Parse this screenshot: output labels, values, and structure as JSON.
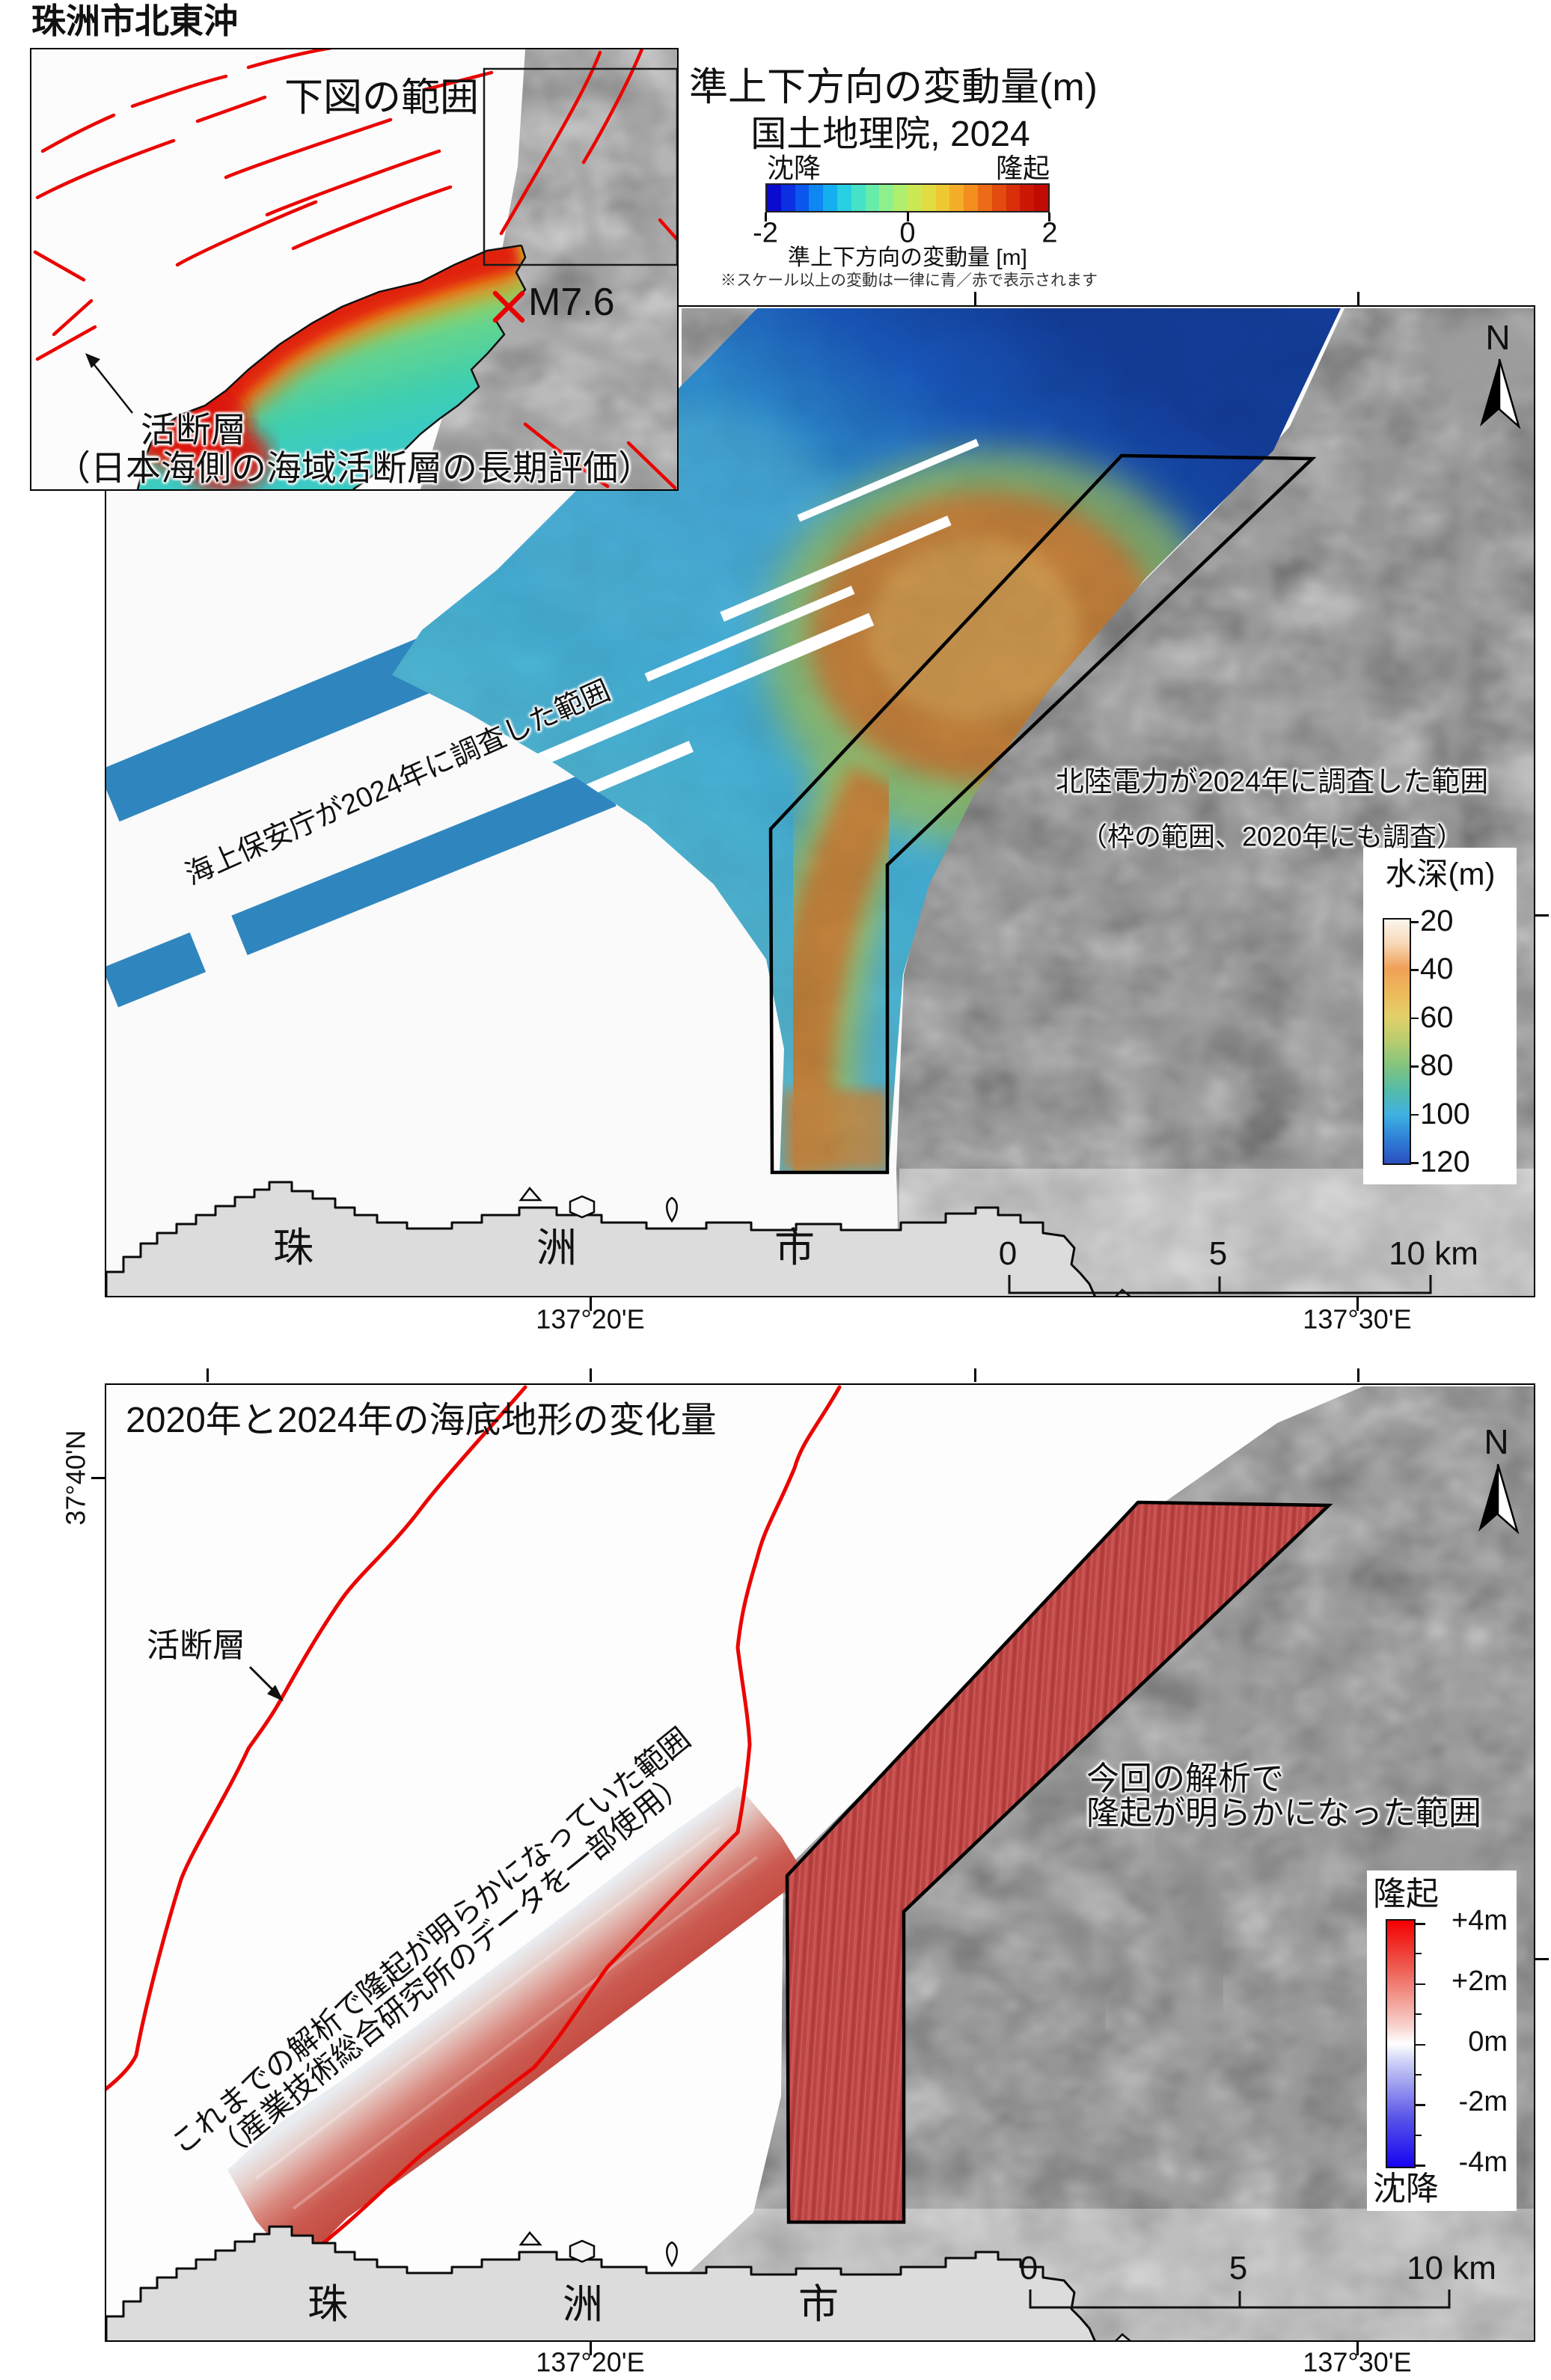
{
  "title": "珠洲市北東沖",
  "inset": {
    "range_label": "下図の範囲",
    "epicenter_label": "M7.6",
    "fault_note_line1": "活断層",
    "fault_note_line2": "（日本海側の海域活断層の長期評価）"
  },
  "gsi_legend": {
    "title_line1": "準上下方向の変動量(m)",
    "title_line2": "国土地理院, 2024",
    "subside_label": "沈降",
    "uplift_label": "隆起",
    "tick_labels": [
      "-2",
      "0",
      "2"
    ],
    "axis_label": "準上下方向の変動量 [m]",
    "note": "※スケール以上の変動は一律に青／赤で表示されます",
    "palette": [
      "#0b0bd0",
      "#0a30e2",
      "#0b57ee",
      "#0f86f2",
      "#15aef0",
      "#27cfe2",
      "#45e2c8",
      "#68ecaa",
      "#8df08c",
      "#b0ee6e",
      "#cce955",
      "#e0dc42",
      "#eec832",
      "#f4ad26",
      "#f28e1e",
      "#ec6b17",
      "#e34b10",
      "#d92e0a",
      "#cc1705",
      "#c00a02"
    ]
  },
  "top_map": {
    "jcg_area_label": "海上保安庁が2024年に調査した範囲",
    "rikuden_area_label_line1": "北陸電力が2024年に調査した範囲",
    "rikuden_area_label_line2": "（枠の範囲、2020年にも調査）",
    "depth_legend": {
      "title": "水深(m)",
      "tick_labels": [
        "20",
        "40",
        "60",
        "80",
        "100",
        "120"
      ]
    },
    "scale_bar": {
      "zero": "0",
      "five": "5",
      "ten": "10 km"
    },
    "north_label": "N",
    "city_chars": [
      "珠",
      "洲",
      "市"
    ],
    "lon_label_west": "137°20'E",
    "lon_label_east": "137°30'E"
  },
  "bottom_map": {
    "panel_title": "2020年と2024年の海底地形の変化量",
    "lat_label": "37°40'N",
    "fault_label": "活断層",
    "previous_area_line1": "これまでの解析で隆起が明らかになっていた範囲",
    "previous_area_line2": "（産業技術総合研究所のデータを一部使用）",
    "current_area_line1": "今回の解析で",
    "current_area_line2": "隆起が明らかになった範囲",
    "uplift_legend": {
      "top_label": "隆起",
      "bottom_label": "沈降",
      "tick_labels": [
        "+4m",
        "+2m",
        "0m",
        "-2m",
        "-4m"
      ]
    },
    "scale_bar": {
      "zero": "0",
      "five": "5",
      "ten": "10 km"
    },
    "north_label": "N",
    "city_chars": [
      "珠",
      "洲",
      "市"
    ],
    "lon_label_west": "137°20'E",
    "lon_label_east": "137°30'E"
  },
  "colors": {
    "fault_red": "#ea0500",
    "survey_blue": "#2f86bf",
    "uplift_fill_red": "#bc4444",
    "land_gray": "#dcdcdc",
    "hillshade_gray": "#d2d2d2"
  }
}
